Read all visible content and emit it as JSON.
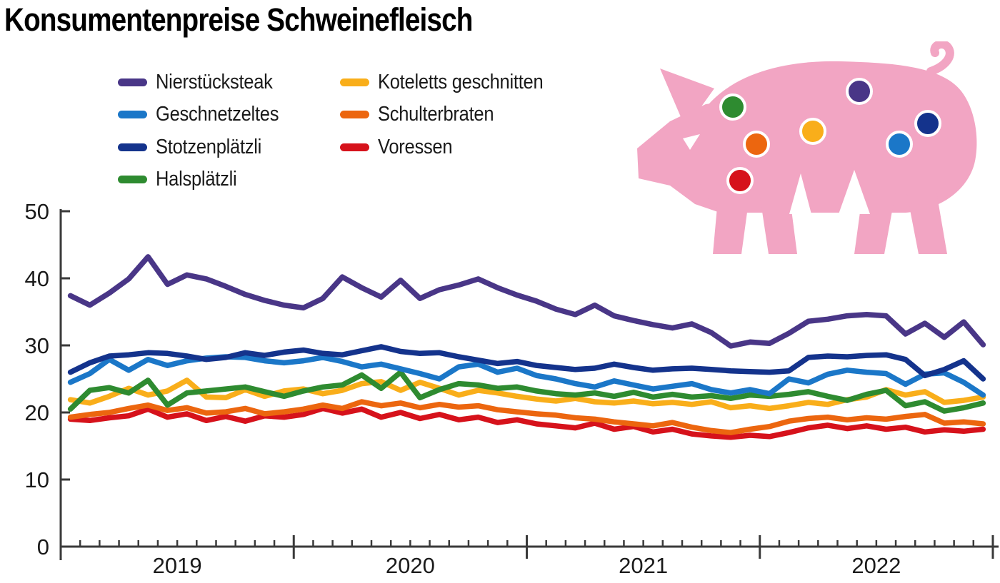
{
  "title": "Konsumentenpreise Schweinefleisch",
  "colors": {
    "background": "#FFFFFF",
    "axis": "#3A3A3A",
    "label_text": "#1A1A1A",
    "pig_body": "#F2A5C3"
  },
  "chart_data": {
    "type": "line",
    "title": "Konsumentenpreise Schweinefleisch",
    "x_start": "2019-01",
    "x_end": "2022-12",
    "x_frequency": "monthly",
    "xlabel": "",
    "ylabel": "",
    "xticklabels": [
      "2019",
      "2020",
      "2021",
      "2022"
    ],
    "yticks": [
      0,
      10,
      20,
      30,
      40,
      50
    ],
    "ylim": [
      0,
      50
    ],
    "grid": false,
    "legend_position": "top-left, two columns",
    "series": [
      {
        "name": "Nierstücksteak",
        "color": "#493687",
        "legend_column": 1,
        "values": [
          37.4,
          36.0,
          37.8,
          39.9,
          43.2,
          39.1,
          40.5,
          39.9,
          38.8,
          37.6,
          36.7,
          36.0,
          35.6,
          37.0,
          40.2,
          38.6,
          37.2,
          39.7,
          37.0,
          38.3,
          39.0,
          39.9,
          38.6,
          37.5,
          36.6,
          35.4,
          34.6,
          36.0,
          34.4,
          33.7,
          33.1,
          32.6,
          33.2,
          31.9,
          29.9,
          30.5,
          30.3,
          31.8,
          33.6,
          33.9,
          34.4,
          34.6,
          34.4,
          31.7,
          33.3,
          31.2,
          33.5,
          30.1
        ]
      },
      {
        "name": "Geschnetzeltes",
        "color": "#1B77C8",
        "legend_column": 1,
        "values": [
          24.5,
          25.8,
          27.9,
          26.3,
          27.9,
          27.0,
          27.7,
          28.1,
          28.3,
          28.2,
          27.7,
          27.4,
          27.7,
          28.2,
          27.6,
          26.8,
          27.2,
          26.5,
          25.8,
          25.0,
          26.8,
          27.2,
          26.0,
          26.6,
          25.5,
          25.0,
          24.3,
          23.8,
          24.7,
          24.1,
          23.5,
          23.9,
          24.3,
          23.4,
          22.9,
          23.4,
          22.8,
          25.0,
          24.4,
          25.7,
          26.3,
          26.0,
          25.8,
          24.2,
          25.7,
          25.9,
          24.5,
          22.6
        ]
      },
      {
        "name": "Stotzenplätzli",
        "color": "#14338C",
        "legend_column": 1,
        "values": [
          26.0,
          27.4,
          28.4,
          28.6,
          28.9,
          28.8,
          28.4,
          27.9,
          28.2,
          28.9,
          28.5,
          29.0,
          29.3,
          28.8,
          28.6,
          29.2,
          29.8,
          29.1,
          28.8,
          28.9,
          28.3,
          27.8,
          27.3,
          27.6,
          27.0,
          26.7,
          26.4,
          26.6,
          27.2,
          26.7,
          26.3,
          26.5,
          26.6,
          26.4,
          26.2,
          26.1,
          26.0,
          26.2,
          28.2,
          28.4,
          28.3,
          28.5,
          28.6,
          27.9,
          25.5,
          26.4,
          27.7,
          25.0
        ]
      },
      {
        "name": "Halsplätzli",
        "color": "#2E8B30",
        "legend_column": 1,
        "values": [
          20.5,
          23.3,
          23.7,
          22.9,
          24.8,
          21.1,
          22.9,
          23.2,
          23.5,
          23.8,
          23.1,
          22.4,
          23.2,
          23.8,
          24.1,
          25.6,
          23.6,
          26.0,
          22.2,
          23.4,
          24.3,
          24.1,
          23.6,
          23.8,
          23.2,
          22.8,
          22.6,
          22.9,
          22.4,
          23.0,
          22.3,
          22.7,
          22.3,
          22.5,
          22.1,
          22.6,
          22.4,
          22.7,
          23.1,
          22.4,
          21.8,
          22.7,
          23.3,
          21.0,
          21.6,
          20.2,
          20.7,
          21.4
        ]
      },
      {
        "name": "Koteletts geschnitten",
        "color": "#F9AE1A",
        "legend_column": 2,
        "values": [
          21.9,
          21.4,
          22.4,
          23.6,
          22.6,
          23.2,
          24.8,
          22.3,
          22.2,
          23.4,
          22.4,
          23.2,
          23.5,
          22.8,
          23.3,
          24.3,
          24.6,
          23.3,
          24.5,
          23.6,
          22.6,
          23.3,
          22.9,
          22.4,
          22.0,
          21.7,
          22.1,
          21.6,
          21.4,
          21.7,
          21.3,
          21.5,
          21.2,
          21.6,
          20.7,
          21.0,
          20.6,
          21.0,
          21.5,
          21.2,
          21.9,
          22.3,
          23.4,
          22.6,
          23.1,
          21.5,
          21.8,
          22.3
        ]
      },
      {
        "name": "Schulterbraten",
        "color": "#EC660F",
        "legend_column": 2,
        "values": [
          19.3,
          19.7,
          20.0,
          20.6,
          21.1,
          20.3,
          20.7,
          19.9,
          20.1,
          20.6,
          19.8,
          20.1,
          20.5,
          21.1,
          20.6,
          21.6,
          21.0,
          21.4,
          20.7,
          21.2,
          20.8,
          21.0,
          20.4,
          20.1,
          19.8,
          19.6,
          19.2,
          19.0,
          18.6,
          18.3,
          18.0,
          18.5,
          17.8,
          17.3,
          17.0,
          17.5,
          17.9,
          18.7,
          19.1,
          19.3,
          18.9,
          19.2,
          19.0,
          19.4,
          19.7,
          18.4,
          18.6,
          18.3
        ]
      },
      {
        "name": "Voressen",
        "color": "#D6121B",
        "legend_column": 2,
        "values": [
          19.0,
          18.8,
          19.2,
          19.5,
          20.5,
          19.3,
          19.8,
          18.8,
          19.4,
          18.7,
          19.5,
          19.3,
          19.7,
          20.6,
          19.9,
          20.5,
          19.3,
          20.0,
          19.1,
          19.7,
          18.9,
          19.3,
          18.5,
          18.9,
          18.3,
          18.0,
          17.7,
          18.4,
          17.5,
          17.9,
          17.1,
          17.5,
          16.8,
          16.5,
          16.3,
          16.6,
          16.4,
          17.0,
          17.7,
          18.1,
          17.6,
          18.0,
          17.5,
          17.8,
          17.1,
          17.4,
          17.2,
          17.5
        ]
      }
    ]
  }
}
